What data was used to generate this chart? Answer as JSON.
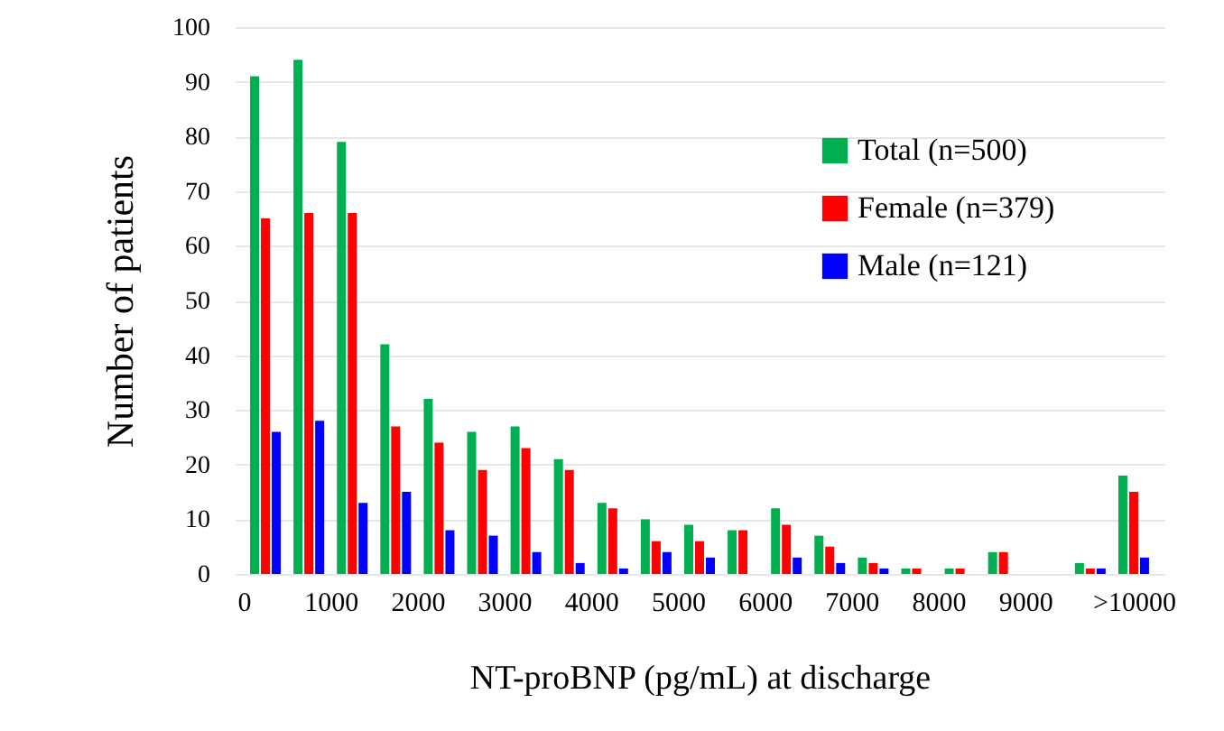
{
  "chart_data": {
    "type": "bar",
    "xlabel": "NT-proBNP (pg/mL) at discharge",
    "ylabel": "Number of patients",
    "xlim": [
      0,
      10500
    ],
    "xticks": [
      0,
      1000,
      2000,
      3000,
      4000,
      5000,
      6000,
      7000,
      8000,
      9000,
      {
        "value": 10250,
        "label": ">10000"
      }
    ],
    "ylim": [
      0,
      100
    ],
    "yticks": [
      0,
      10,
      20,
      30,
      40,
      50,
      60,
      70,
      80,
      90,
      100
    ],
    "grid": "y",
    "legend": "top right",
    "x": [
      250,
      750,
      1250,
      1750,
      2250,
      2750,
      3250,
      3750,
      4250,
      4750,
      5250,
      5750,
      6250,
      6750,
      7250,
      7750,
      8250,
      8750,
      9750,
      10250
    ],
    "series": [
      {
        "name": "Total (n=500)",
        "color": "#00b050",
        "values": [
          91,
          94,
          79,
          42,
          32,
          26,
          27,
          21,
          13,
          10,
          9,
          8,
          12,
          7,
          3,
          1,
          1,
          4,
          2,
          18
        ]
      },
      {
        "name": "Female (n=379)",
        "color": "#ff0000",
        "values": [
          65,
          66,
          66,
          27,
          24,
          19,
          23,
          19,
          12,
          6,
          6,
          8,
          9,
          5,
          2,
          1,
          1,
          4,
          1,
          15
        ]
      },
      {
        "name": "Male (n=121)",
        "color": "#0000ff",
        "values": [
          26,
          28,
          13,
          15,
          8,
          7,
          4,
          2,
          1,
          4,
          3,
          0,
          3,
          2,
          1,
          0,
          0,
          0,
          1,
          3
        ]
      }
    ]
  }
}
